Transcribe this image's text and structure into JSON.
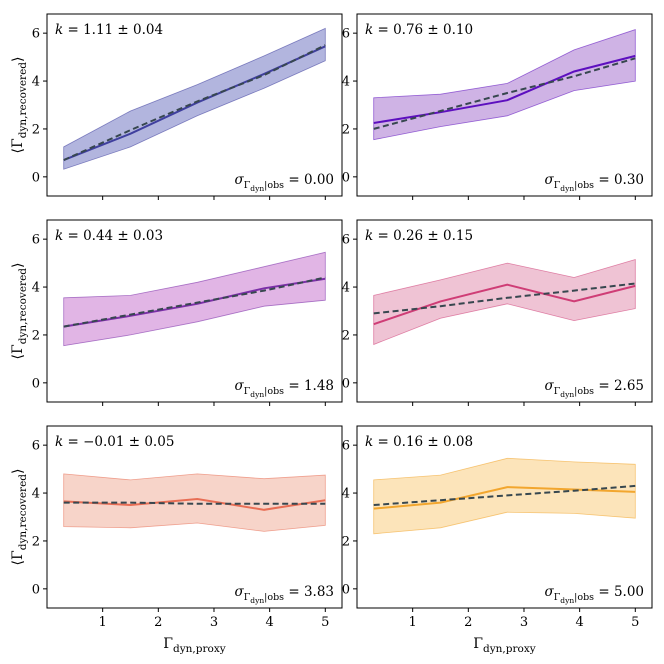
{
  "chart_data": {
    "type": "line",
    "layout": "3 rows x 2 columns, shared axes",
    "xlabel": "Γ_dyn,proxy",
    "ylabel": "⟨Γ_dyn,recovered⟩",
    "xlim": [
      0,
      5.3
    ],
    "ylim": [
      -0.8,
      6.8
    ],
    "xticks": [
      1,
      2,
      3,
      4,
      5
    ],
    "yticks": [
      0,
      2,
      4,
      6
    ],
    "x": [
      0.3,
      1.5,
      2.7,
      3.9,
      5.0
    ],
    "panels": [
      {
        "k_label": "k = 1.11 ± 0.04",
        "sigma_value": "0.00",
        "color": "#3f3f9e",
        "fill_color": "#a4a8d8",
        "mean": [
          0.7,
          1.8,
          3.1,
          4.3,
          5.45
        ],
        "lower": [
          0.32,
          1.25,
          2.55,
          3.7,
          4.85
        ],
        "upper": [
          1.25,
          2.75,
          3.85,
          5.05,
          6.2
        ],
        "fit": [
          0.7,
          1.95,
          3.15,
          4.25,
          5.5
        ]
      },
      {
        "k_label": "k = 0.76 ± 0.10",
        "sigma_value": "0.30",
        "color": "#5d0fbf",
        "fill_color": "#c7a6e0",
        "mean": [
          2.25,
          2.7,
          3.2,
          4.4,
          5.05
        ],
        "lower": [
          1.55,
          2.1,
          2.55,
          3.6,
          4.0
        ],
        "upper": [
          3.3,
          3.45,
          3.9,
          5.3,
          6.15
        ],
        "fit": [
          2.0,
          2.75,
          3.5,
          4.2,
          4.95
        ]
      },
      {
        "k_label": "k = 0.44 ± 0.03",
        "sigma_value": "1.48",
        "color": "#7b2fa8",
        "fill_color": "#dca8e0",
        "mean": [
          2.35,
          2.8,
          3.3,
          3.95,
          4.35
        ],
        "lower": [
          1.55,
          2.0,
          2.55,
          3.2,
          3.45
        ],
        "upper": [
          3.55,
          3.65,
          4.2,
          4.85,
          5.45
        ],
        "fit": [
          2.35,
          2.85,
          3.35,
          3.85,
          4.4
        ]
      },
      {
        "k_label": "k = 0.26 ± 0.15",
        "sigma_value": "2.65",
        "color": "#cf3d76",
        "fill_color": "#ecb9cc",
        "mean": [
          2.45,
          3.4,
          4.1,
          3.4,
          4.05
        ],
        "lower": [
          1.6,
          2.7,
          3.3,
          2.6,
          3.1
        ],
        "upper": [
          3.65,
          4.3,
          5.0,
          4.4,
          5.15
        ],
        "fit": [
          2.9,
          3.2,
          3.55,
          3.85,
          4.15
        ]
      },
      {
        "k_label": "k = −0.01 ± 0.05",
        "sigma_value": "3.83",
        "color": "#e86e55",
        "fill_color": "#f6cdc0",
        "mean": [
          3.65,
          3.5,
          3.75,
          3.3,
          3.7
        ],
        "lower": [
          2.6,
          2.55,
          2.75,
          2.4,
          2.65
        ],
        "upper": [
          4.8,
          4.55,
          4.8,
          4.6,
          4.75
        ],
        "fit": [
          3.6,
          3.6,
          3.55,
          3.55,
          3.55
        ]
      },
      {
        "k_label": "k = 0.16 ± 0.08",
        "sigma_value": "5.00",
        "color": "#f2a62e",
        "fill_color": "#fbdfae",
        "mean": [
          3.35,
          3.6,
          4.25,
          4.15,
          4.05
        ],
        "lower": [
          2.3,
          2.55,
          3.2,
          3.15,
          2.95
        ],
        "upper": [
          4.55,
          4.75,
          5.45,
          5.3,
          5.2
        ],
        "fit": [
          3.5,
          3.7,
          3.9,
          4.1,
          4.3
        ]
      }
    ]
  }
}
